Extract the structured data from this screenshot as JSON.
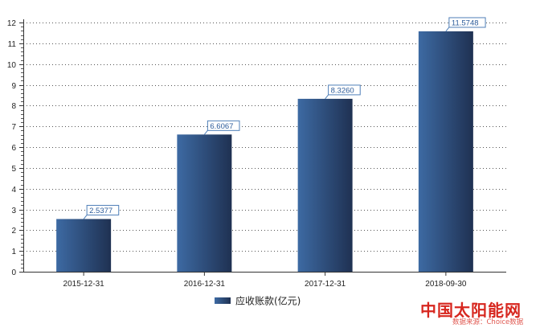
{
  "chart_data": {
    "type": "bar",
    "categories": [
      "2015-12-31",
      "2016-12-31",
      "2017-12-31",
      "2018-09-30"
    ],
    "series": [
      {
        "name": "应收账款(亿元)",
        "values": [
          2.5377,
          6.6067,
          8.326,
          11.5748
        ],
        "labels": [
          "2.5377",
          "6.6067",
          "8.3260",
          "11.5748"
        ]
      }
    ],
    "y_ticks": [
      "0",
      "1",
      "2",
      "3",
      "4",
      "5",
      "6",
      "7",
      "8",
      "9",
      "10",
      "11",
      "12"
    ],
    "ylim": [
      0,
      12
    ],
    "title": "",
    "xlabel": "",
    "ylabel": "",
    "grid": "horizontal-dotted",
    "legend_position": "bottom-center",
    "colors": {
      "bar_dark": "#1f3152",
      "bar_light": "#3d6aa3",
      "label_border": "#4f7fb8",
      "label_text": "#2b5b9a"
    }
  },
  "watermark": {
    "site_name": "中国太阳能网",
    "source_text": "数据来源：Choice数据"
  }
}
